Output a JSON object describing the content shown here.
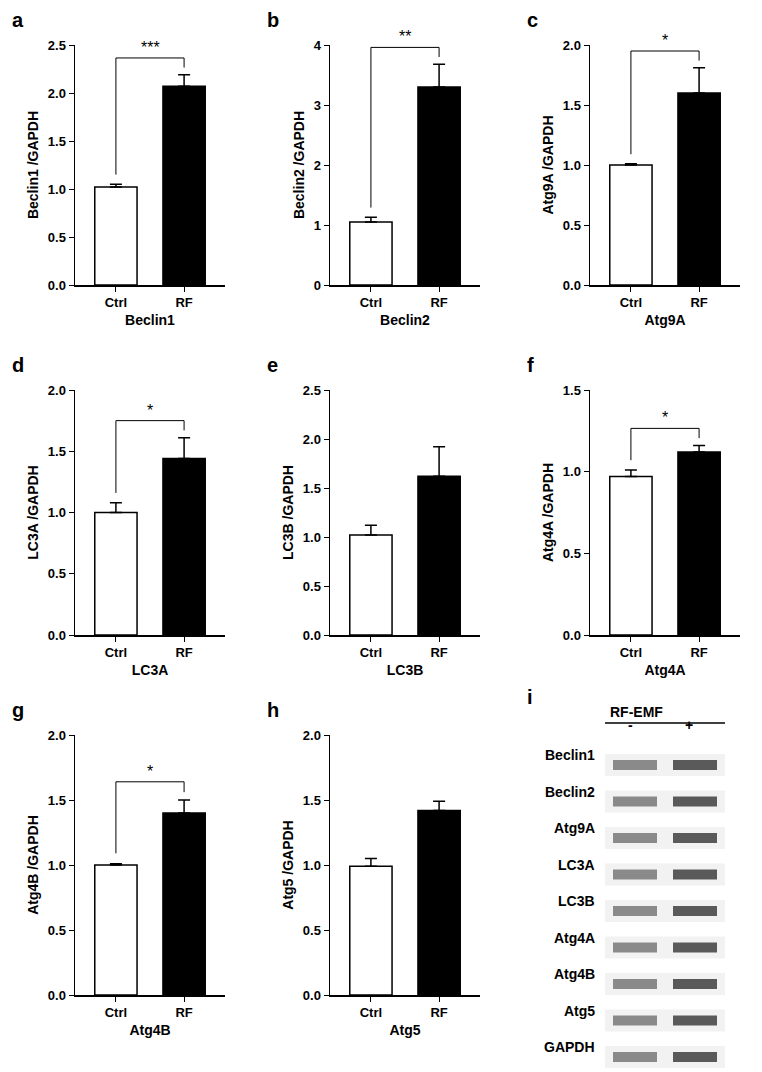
{
  "chart_data": [
    {
      "panel": "a",
      "type": "bar",
      "categories": [
        "Ctrl",
        "RF"
      ],
      "values": [
        1.02,
        2.07
      ],
      "errors": [
        0.03,
        0.12
      ],
      "colors": [
        "#ffffff",
        "#000000"
      ],
      "ylabel": "Beclin1 /GAPDH",
      "xlabel": "Beclin1",
      "significance": "***",
      "ylim": [
        0,
        2.5
      ],
      "yticks": [
        {
          "value": 0,
          "label": "0.0"
        },
        0.5,
        {
          "value": 1,
          "label": "1.0"
        },
        1.5,
        {
          "value": 2,
          "label": "2.0"
        },
        2.5
      ]
    },
    {
      "panel": "b",
      "type": "bar",
      "categories": [
        "Ctrl",
        "RF"
      ],
      "values": [
        1.05,
        3.3
      ],
      "errors": [
        0.08,
        0.38
      ],
      "colors": [
        "#ffffff",
        "#000000"
      ],
      "ylabel": "Beclin2 /GAPDH",
      "xlabel": "Beclin2",
      "significance": "**",
      "ylim": [
        0,
        4
      ],
      "yticks": [
        0,
        1,
        2,
        3,
        4
      ]
    },
    {
      "panel": "c",
      "type": "bar",
      "categories": [
        "Ctrl",
        "RF"
      ],
      "values": [
        1.0,
        1.6
      ],
      "errors": [
        0.01,
        0.21
      ],
      "colors": [
        "#ffffff",
        "#000000"
      ],
      "ylabel": "Atg9A /GAPDH",
      "xlabel": "Atg9A",
      "significance": "*",
      "ylim": [
        0,
        2
      ],
      "yticks": [
        {
          "value": 0,
          "label": "0.0"
        },
        0.5,
        {
          "value": 1,
          "label": "1.0"
        },
        1.5,
        {
          "value": 2,
          "label": "2.0"
        }
      ]
    },
    {
      "panel": "d",
      "type": "bar",
      "categories": [
        "Ctrl",
        "RF"
      ],
      "values": [
        1.0,
        1.44
      ],
      "errors": [
        0.08,
        0.17
      ],
      "colors": [
        "#ffffff",
        "#000000"
      ],
      "ylabel": "LC3A /GAPDH",
      "xlabel": "LC3A",
      "significance": "*",
      "ylim": [
        0,
        2
      ],
      "yticks": [
        {
          "value": 0,
          "label": "0.0"
        },
        0.5,
        {
          "value": 1,
          "label": "1.0"
        },
        1.5,
        {
          "value": 2,
          "label": "2.0"
        }
      ]
    },
    {
      "panel": "e",
      "type": "bar",
      "categories": [
        "Ctrl",
        "RF"
      ],
      "values": [
        1.02,
        1.62
      ],
      "errors": [
        0.1,
        0.3
      ],
      "colors": [
        "#ffffff",
        "#000000"
      ],
      "ylabel": "LC3B /GAPDH",
      "xlabel": "LC3B",
      "ylim": [
        0,
        2.5
      ],
      "yticks": [
        {
          "value": 0,
          "label": "0.0"
        },
        0.5,
        {
          "value": 1,
          "label": "1.0"
        },
        1.5,
        {
          "value": 2,
          "label": "2.0"
        },
        2.5
      ]
    },
    {
      "panel": "f",
      "type": "bar",
      "categories": [
        "Ctrl",
        "RF"
      ],
      "values": [
        0.97,
        1.12
      ],
      "errors": [
        0.04,
        0.04
      ],
      "colors": [
        "#ffffff",
        "#000000"
      ],
      "ylabel": "Atg4A /GAPDH",
      "xlabel": "Atg4A",
      "significance": "*",
      "ylim": [
        0,
        1.5
      ],
      "yticks": [
        {
          "value": 0,
          "label": "0.0"
        },
        0.5,
        {
          "value": 1,
          "label": "1.0"
        },
        1.5
      ]
    },
    {
      "panel": "g",
      "type": "bar",
      "categories": [
        "Ctrl",
        "RF"
      ],
      "values": [
        1.0,
        1.4
      ],
      "errors": [
        0.01,
        0.1
      ],
      "colors": [
        "#ffffff",
        "#000000"
      ],
      "ylabel": "Atg4B /GAPDH",
      "xlabel": "Atg4B",
      "significance": "*",
      "ylim": [
        0,
        2
      ],
      "yticks": [
        {
          "value": 0,
          "label": "0.0"
        },
        0.5,
        {
          "value": 1,
          "label": "1.0"
        },
        1.5,
        {
          "value": 2,
          "label": "2.0"
        }
      ]
    },
    {
      "panel": "h",
      "type": "bar",
      "categories": [
        "Ctrl",
        "RF"
      ],
      "values": [
        0.99,
        1.42
      ],
      "errors": [
        0.06,
        0.07
      ],
      "colors": [
        "#ffffff",
        "#000000"
      ],
      "ylabel": "Atg5 /GAPDH",
      "xlabel": "Atg5",
      "ylim": [
        0,
        2
      ],
      "yticks": [
        {
          "value": 0,
          "label": "0.0"
        },
        0.5,
        {
          "value": 1,
          "label": "1.0"
        },
        1.5,
        {
          "value": 2,
          "label": "2.0"
        }
      ]
    }
  ],
  "gel": {
    "panel": "i",
    "header": "RF-EMF",
    "lanes": [
      "-",
      "+"
    ],
    "rows": [
      "Beclin1",
      "Beclin2",
      "Atg9A",
      "LC3A",
      "LC3B",
      "Atg4A",
      "Atg4B",
      "Atg5",
      "GAPDH"
    ]
  }
}
